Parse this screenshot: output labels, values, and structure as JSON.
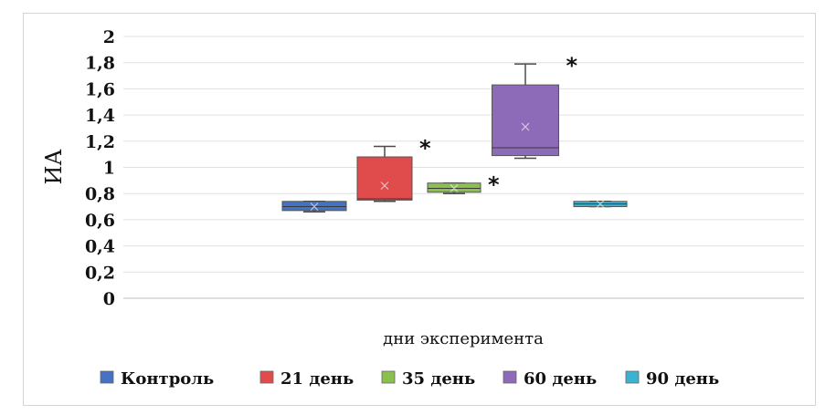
{
  "chart_data": {
    "type": "box",
    "title": "",
    "ylabel": "ИА",
    "xlabel": "дни эксперимента",
    "ylim": [
      0,
      2
    ],
    "yticks": [
      "0",
      "0,2",
      "0,4",
      "0,6",
      "0,8",
      "1",
      "1,2",
      "1,4",
      "1,6",
      "1,8",
      "2"
    ],
    "grid": true,
    "legend_position": "bottom",
    "series": [
      {
        "name": "Контроль",
        "color": "#4472C4",
        "min": 0.66,
        "q1": 0.67,
        "median": 0.7,
        "mean": 0.7,
        "q3": 0.74,
        "max": 0.74,
        "significant": false
      },
      {
        "name": "21 день",
        "color": "#E04B4B",
        "min": 0.74,
        "q1": 0.75,
        "median": 0.76,
        "mean": 0.86,
        "q3": 1.08,
        "max": 1.16,
        "significant": true
      },
      {
        "name": "35 день",
        "color": "#8CC04E",
        "min": 0.8,
        "q1": 0.81,
        "median": 0.84,
        "mean": 0.84,
        "q3": 0.88,
        "max": 0.88,
        "significant": true
      },
      {
        "name": "60 день",
        "color": "#8E6BB8",
        "min": 1.07,
        "q1": 1.09,
        "median": 1.15,
        "mean": 1.31,
        "q3": 1.63,
        "max": 1.79,
        "significant": true
      },
      {
        "name": "90 день",
        "color": "#3BB3D0",
        "min": 0.7,
        "q1": 0.7,
        "median": 0.72,
        "mean": 0.72,
        "q3": 0.74,
        "max": 0.74,
        "significant": false
      }
    ],
    "significance_marker": "*"
  }
}
